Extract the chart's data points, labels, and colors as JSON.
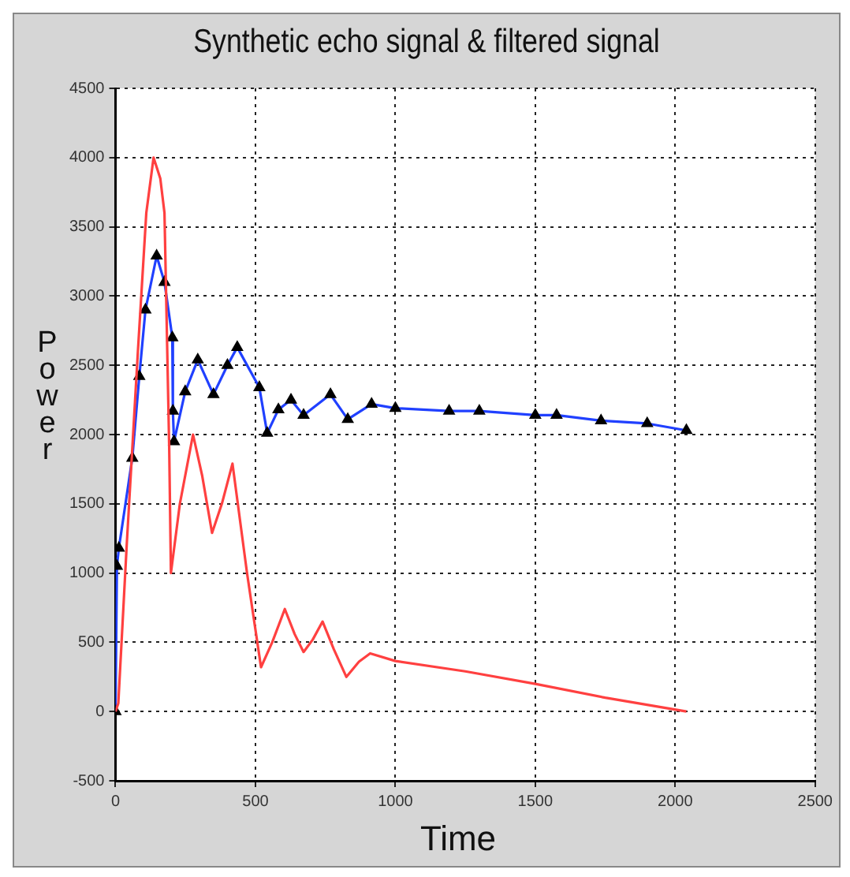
{
  "chart_data": {
    "type": "line",
    "title": "Synthetic echo signal & filtered signal",
    "xlabel": "Time",
    "ylabel": "Power",
    "xlim": [
      0,
      2500
    ],
    "xticks": [
      0,
      500,
      1000,
      1500,
      2000,
      2500
    ],
    "ylim": [
      -500,
      4500
    ],
    "yticks": [
      -500,
      0,
      500,
      1000,
      1500,
      2000,
      2500,
      3000,
      3500,
      4000,
      4500
    ],
    "grid": true,
    "legend": false,
    "line_style": "solid",
    "series": [
      {
        "color": "#ff4040",
        "marker": "none",
        "x": [
          0,
          10,
          40,
          80,
          110,
          136,
          160,
          175,
          192,
          198,
          230,
          277,
          310,
          345,
          380,
          418,
          470,
          520,
          560,
          605,
          640,
          672,
          705,
          740,
          780,
          825,
          870,
          910,
          1000,
          1250,
          1500,
          1750,
          2040
        ],
        "values": [
          0,
          60,
          1200,
          2600,
          3600,
          4000,
          3850,
          3600,
          1890,
          1000,
          1500,
          2000,
          1700,
          1290,
          1500,
          1790,
          1000,
          320,
          500,
          740,
          560,
          430,
          520,
          650,
          450,
          250,
          360,
          420,
          365,
          290,
          200,
          100,
          0
        ]
      },
      {
        "color": "#2040ff",
        "marker": "triangle",
        "x": [
          0,
          5,
          12,
          60,
          85,
          107,
          147,
          175,
          203,
          205,
          209,
          249,
          294,
          350,
          400,
          435,
          514,
          542,
          582,
          627,
          672,
          768,
          830,
          915,
          1000,
          1192,
          1300,
          1500,
          1576,
          1735,
          1900,
          2040
        ],
        "values": [
          0,
          1050,
          1180,
          1830,
          2420,
          2900,
          3290,
          3100,
          2700,
          2170,
          1950,
          2310,
          2540,
          2290,
          2500,
          2630,
          2340,
          2010,
          2180,
          2250,
          2140,
          2290,
          2110,
          2220,
          2190,
          2170,
          2170,
          2140,
          2140,
          2100,
          2080,
          2030
        ]
      }
    ]
  }
}
